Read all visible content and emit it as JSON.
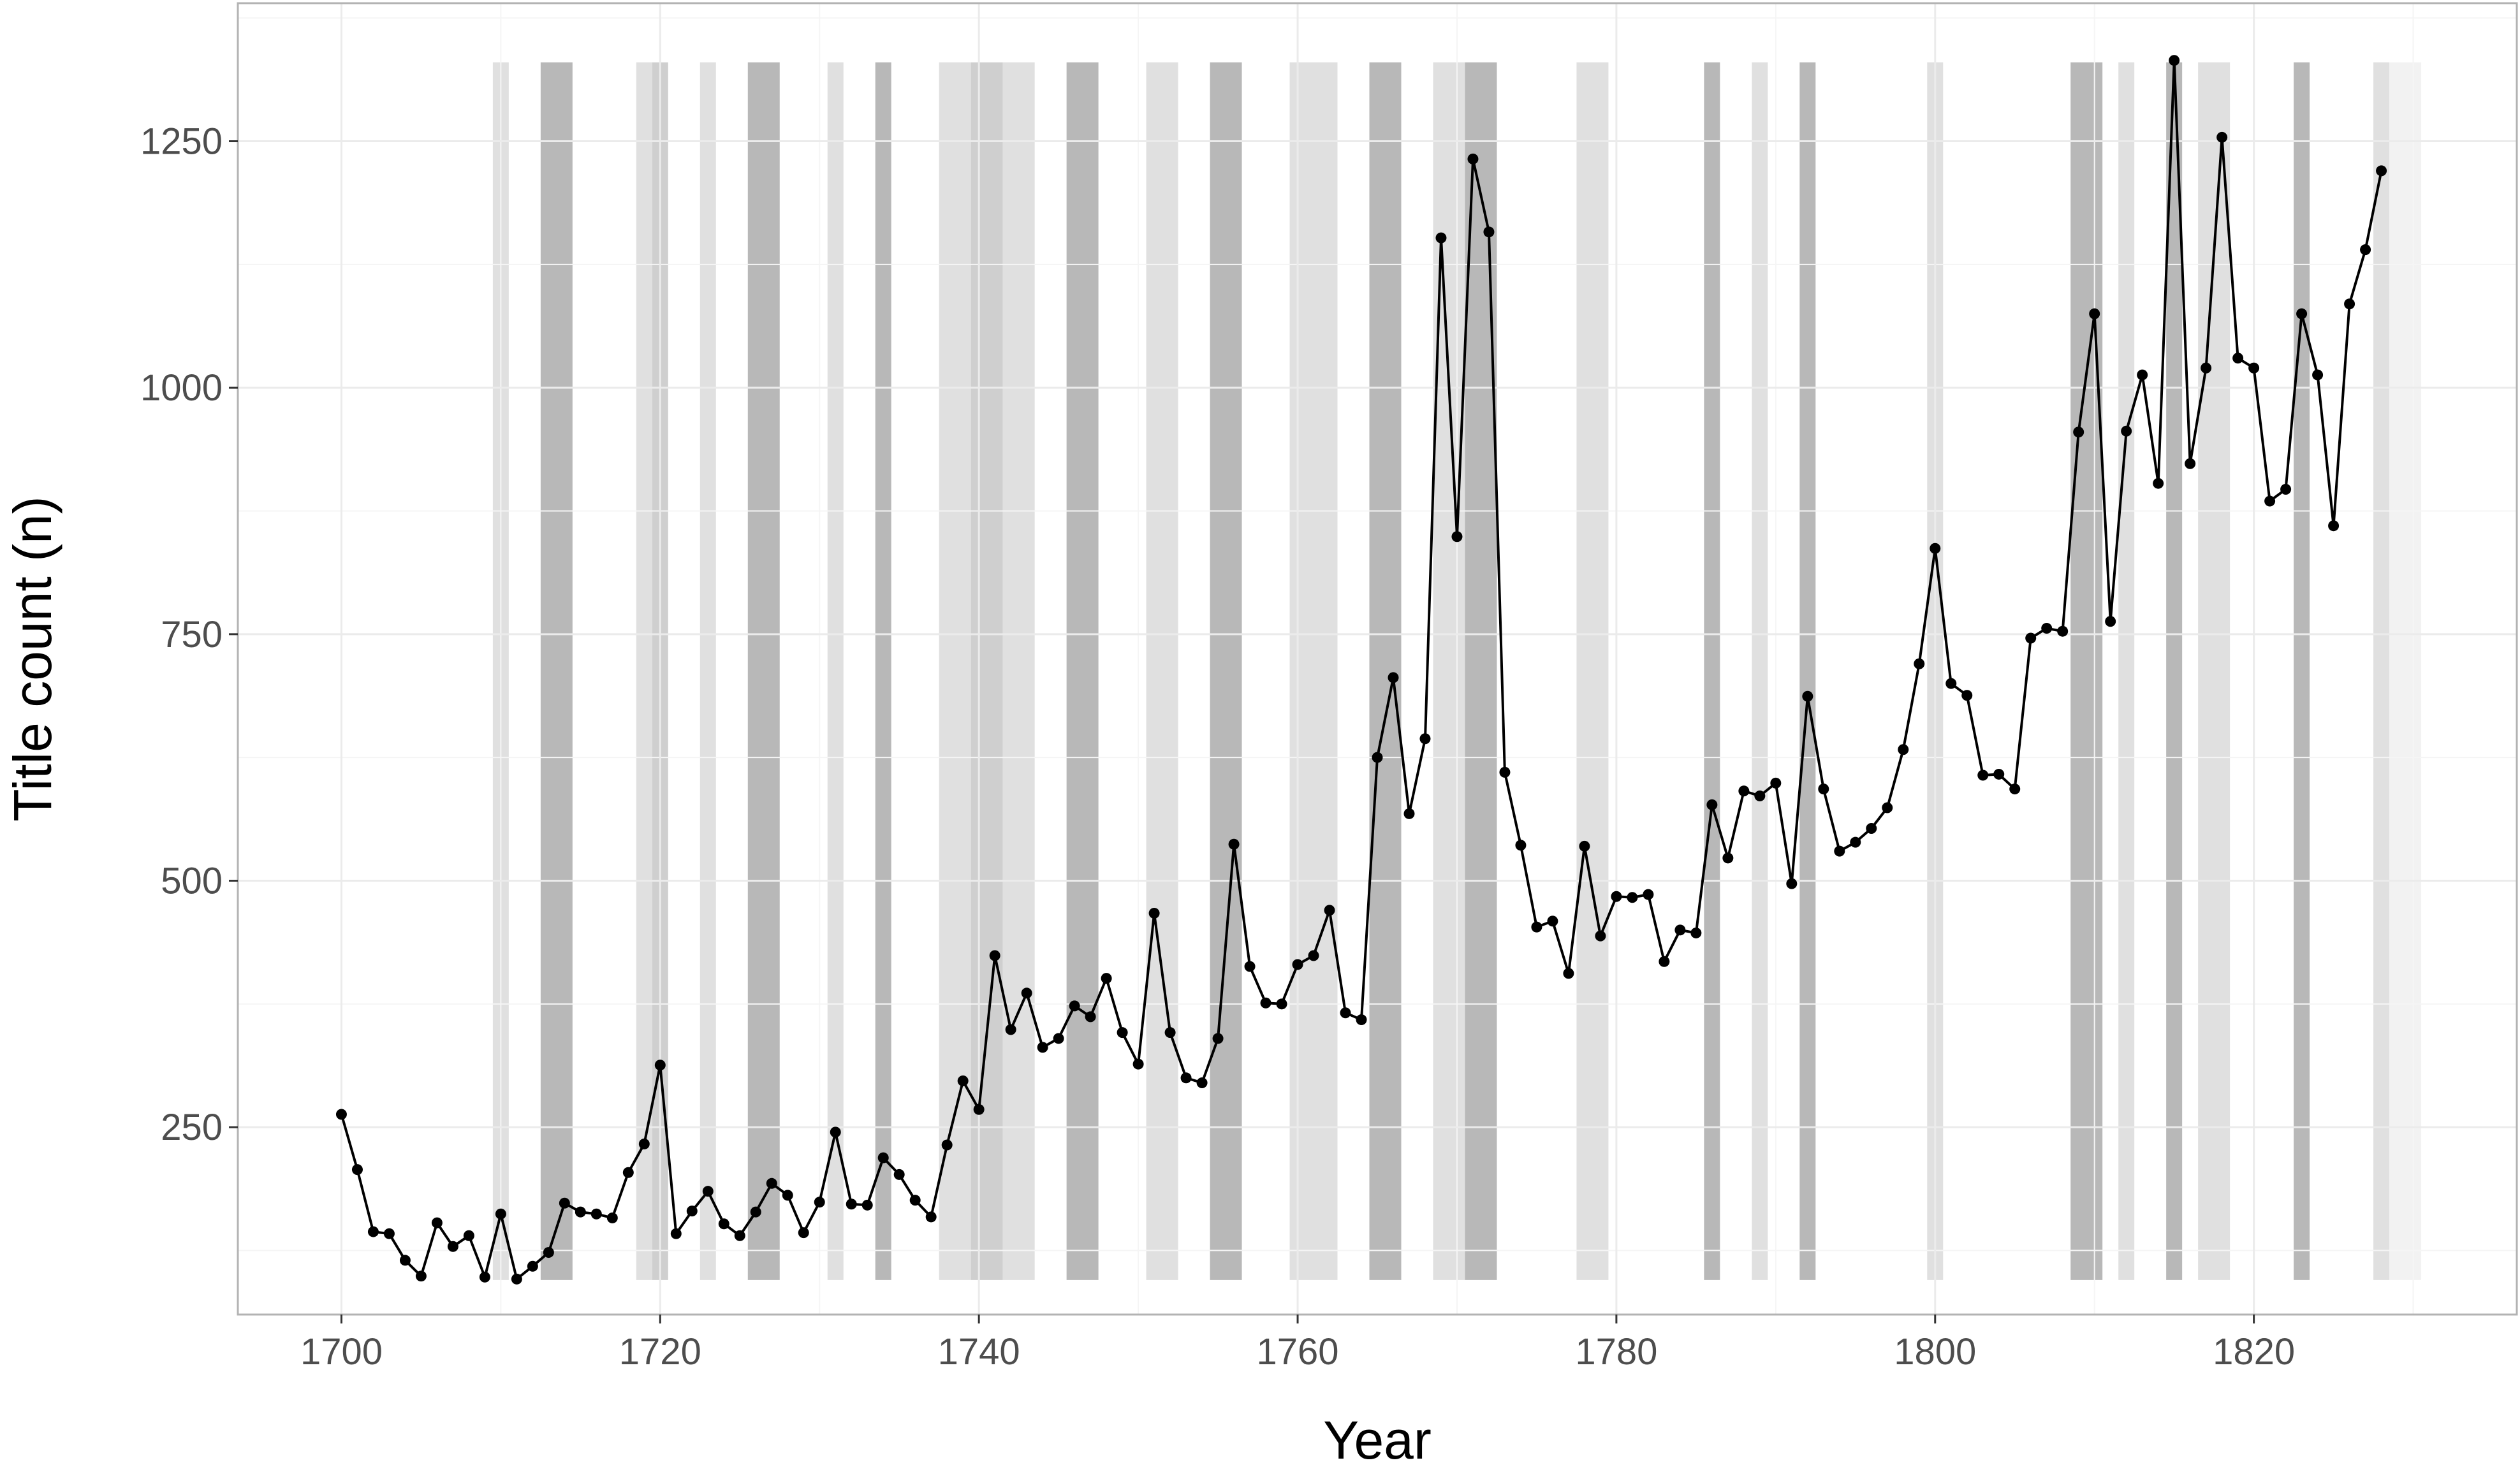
{
  "chart_data": {
    "type": "line",
    "title": "",
    "xlabel": "Year",
    "ylabel": "Title count (n)",
    "xlim": [
      1693.5,
      1836.5
    ],
    "ylim": [
      60,
      1390
    ],
    "x_ticks": [
      1700,
      1720,
      1740,
      1760,
      1780,
      1800,
      1820
    ],
    "x_tick_labels": [
      "1700",
      "1720",
      "1740",
      "1760",
      "1780",
      "1800",
      "1820"
    ],
    "y_ticks": [
      250,
      500,
      750,
      1000,
      1250
    ],
    "y_tick_labels": [
      "250",
      "500",
      "750",
      "1000",
      "1250"
    ],
    "grid": true,
    "legend": "none",
    "colors": {
      "line": "#000000",
      "panel_border": "#b3b3b3",
      "grid_major": "#ebebeb",
      "grid_minor": "#f5f5f5",
      "shade_dark": "#b8b8b8",
      "shade_mid": "#cfcfcf",
      "shade_light": "#e0e0e0",
      "shade_faint": "#f2f2f2"
    },
    "shading_y_range": [
      95,
      1330
    ],
    "shaded_periods": [
      {
        "start": 1709.5,
        "end": 1710.5,
        "tone": "light"
      },
      {
        "start": 1712.5,
        "end": 1714.5,
        "tone": "dark"
      },
      {
        "start": 1718.5,
        "end": 1719.5,
        "tone": "light"
      },
      {
        "start": 1719.5,
        "end": 1720.5,
        "tone": "mid"
      },
      {
        "start": 1722.5,
        "end": 1723.5,
        "tone": "light"
      },
      {
        "start": 1725.5,
        "end": 1727.5,
        "tone": "dark"
      },
      {
        "start": 1730.5,
        "end": 1731.5,
        "tone": "light"
      },
      {
        "start": 1733.5,
        "end": 1734.5,
        "tone": "dark"
      },
      {
        "start": 1737.5,
        "end": 1739.5,
        "tone": "light"
      },
      {
        "start": 1739.5,
        "end": 1741.5,
        "tone": "mid"
      },
      {
        "start": 1741.5,
        "end": 1743.5,
        "tone": "light"
      },
      {
        "start": 1745.5,
        "end": 1747.5,
        "tone": "dark"
      },
      {
        "start": 1750.5,
        "end": 1752.5,
        "tone": "light"
      },
      {
        "start": 1754.5,
        "end": 1756.5,
        "tone": "dark"
      },
      {
        "start": 1759.5,
        "end": 1762.5,
        "tone": "light"
      },
      {
        "start": 1764.5,
        "end": 1766.5,
        "tone": "dark"
      },
      {
        "start": 1768.5,
        "end": 1770.5,
        "tone": "light"
      },
      {
        "start": 1770.5,
        "end": 1772.5,
        "tone": "dark"
      },
      {
        "start": 1777.5,
        "end": 1779.5,
        "tone": "light"
      },
      {
        "start": 1785.5,
        "end": 1786.5,
        "tone": "dark"
      },
      {
        "start": 1788.5,
        "end": 1789.5,
        "tone": "light"
      },
      {
        "start": 1791.5,
        "end": 1792.5,
        "tone": "dark"
      },
      {
        "start": 1799.5,
        "end": 1800.5,
        "tone": "light"
      },
      {
        "start": 1808.5,
        "end": 1810.5,
        "tone": "dark"
      },
      {
        "start": 1811.5,
        "end": 1812.5,
        "tone": "light"
      },
      {
        "start": 1814.5,
        "end": 1815.5,
        "tone": "dark"
      },
      {
        "start": 1816.5,
        "end": 1818.5,
        "tone": "light"
      },
      {
        "start": 1822.5,
        "end": 1823.5,
        "tone": "dark"
      },
      {
        "start": 1827.5,
        "end": 1828.5,
        "tone": "light"
      },
      {
        "start": 1828.5,
        "end": 1830.5,
        "tone": "faint"
      }
    ],
    "series": [
      {
        "x": [
          1700,
          1701,
          1702,
          1703,
          1704,
          1705,
          1706,
          1707,
          1708,
          1709,
          1710,
          1711,
          1712,
          1713,
          1714,
          1715,
          1716,
          1717,
          1718,
          1719,
          1720,
          1721,
          1722,
          1723,
          1724,
          1725,
          1726,
          1727,
          1728,
          1729,
          1730,
          1731,
          1732,
          1733,
          1734,
          1735,
          1736,
          1737,
          1738,
          1739,
          1740,
          1741,
          1742,
          1743,
          1744,
          1745,
          1746,
          1747,
          1748,
          1749,
          1750,
          1751,
          1752,
          1753,
          1754,
          1755,
          1756,
          1757,
          1758,
          1759,
          1760,
          1761,
          1762,
          1763,
          1764,
          1765,
          1766,
          1767,
          1768,
          1769,
          1770,
          1771,
          1772,
          1773,
          1774,
          1775,
          1776,
          1777,
          1778,
          1779,
          1780,
          1781,
          1782,
          1783,
          1784,
          1785,
          1786,
          1787,
          1788,
          1789,
          1790,
          1791,
          1792,
          1793,
          1794,
          1795,
          1796,
          1797,
          1798,
          1799,
          1800,
          1801,
          1802,
          1803,
          1804,
          1805,
          1806,
          1807,
          1808,
          1809,
          1810,
          1811,
          1812,
          1813,
          1814,
          1815,
          1816,
          1817,
          1818,
          1819,
          1820,
          1821,
          1822,
          1823,
          1824,
          1825,
          1826,
          1827,
          1828
        ],
        "values": [
          263,
          207,
          144,
          142,
          115,
          99,
          153,
          129,
          140,
          98,
          162,
          96,
          109,
          123,
          173,
          164,
          162,
          158,
          204,
          233,
          313,
          142,
          165,
          185,
          152,
          140,
          164,
          193,
          181,
          143,
          174,
          245,
          172,
          171,
          219,
          202,
          176,
          159,
          232,
          297,
          268,
          424,
          349,
          386,
          331,
          340,
          373,
          362,
          401,
          346,
          314,
          467,
          346,
          300,
          295,
          340,
          537,
          413,
          376,
          375,
          415,
          424,
          470,
          366,
          359,
          625,
          706,
          568,
          644,
          1152,
          849,
          1232,
          1158,
          610,
          536,
          453,
          459,
          406,
          535,
          444,
          484,
          483,
          486,
          418,
          450,
          447,
          577,
          523,
          591,
          586,
          599,
          497,
          687,
          593,
          530,
          539,
          553,
          574,
          633,
          720,
          837,
          700,
          688,
          607,
          608,
          593,
          746,
          756,
          753,
          955,
          1075,
          763,
          956,
          1013,
          903,
          1332,
          923,
          1020,
          1254,
          1030,
          1020,
          885,
          897,
          1075,
          1013,
          860,
          1085,
          1140,
          1220
        ]
      }
    ]
  }
}
